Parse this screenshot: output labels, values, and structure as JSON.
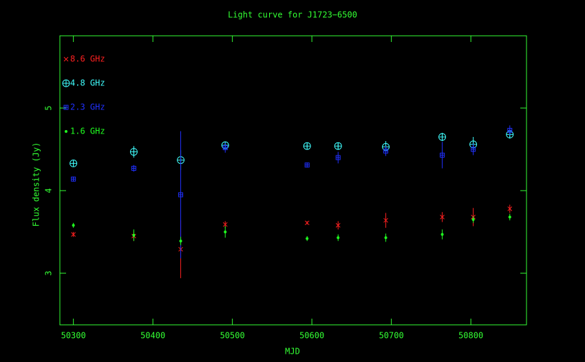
{
  "chart_data": {
    "type": "scatter",
    "title": "Light curve for J1723−6500",
    "x_label": "MJD",
    "y_label": "Flux density (Jy)",
    "x": [
      50300,
      50376,
      50435,
      50491,
      50594,
      50633,
      50693,
      50764,
      50803,
      50849
    ],
    "xlim": [
      50283,
      50870
    ],
    "xticks": [
      50300,
      50400,
      50500,
      50600,
      50700,
      50800
    ],
    "ylim": [
      2.375,
      5.875
    ],
    "yticks": [
      3,
      4,
      5
    ],
    "axis_color": "#33ff33",
    "series": [
      {
        "name": "8.6 GHz",
        "color": "#ff2020",
        "marker": "x",
        "values": [
          3.47,
          3.45,
          3.29,
          3.59,
          3.61,
          3.58,
          3.64,
          3.68,
          3.68,
          3.78
        ],
        "errors": [
          0.03,
          0.06,
          0.35,
          0.04,
          0.02,
          0.05,
          0.09,
          0.06,
          0.11,
          0.05
        ]
      },
      {
        "name": "4.8 GHz",
        "color": "#40ffff",
        "marker": "circle-plus",
        "values": [
          4.33,
          4.47,
          4.37,
          4.55,
          4.54,
          4.54,
          4.53,
          4.65,
          4.56,
          4.68
        ],
        "errors": [
          0.03,
          0.07,
          0.12,
          0.04,
          0.03,
          0.04,
          0.07,
          0.05,
          0.09,
          0.05
        ]
      },
      {
        "name": "2.3 GHz",
        "color": "#2030ff",
        "marker": "square",
        "values": [
          4.14,
          4.27,
          3.95,
          4.52,
          4.31,
          4.4,
          4.48,
          4.43,
          4.5,
          4.73
        ],
        "errors": [
          0.03,
          0.04,
          0.77,
          0.06,
          0.03,
          0.07,
          0.06,
          0.16,
          0.07,
          0.06
        ]
      },
      {
        "name": "1.6 GHz",
        "color": "#20ff20",
        "marker": "dot",
        "values": [
          3.58,
          3.46,
          3.39,
          3.5,
          3.42,
          3.43,
          3.43,
          3.47,
          3.65,
          3.68
        ],
        "errors": [
          0.03,
          0.07,
          0.05,
          0.07,
          0.03,
          0.04,
          0.05,
          0.06,
          0.04,
          0.04
        ]
      }
    ]
  }
}
